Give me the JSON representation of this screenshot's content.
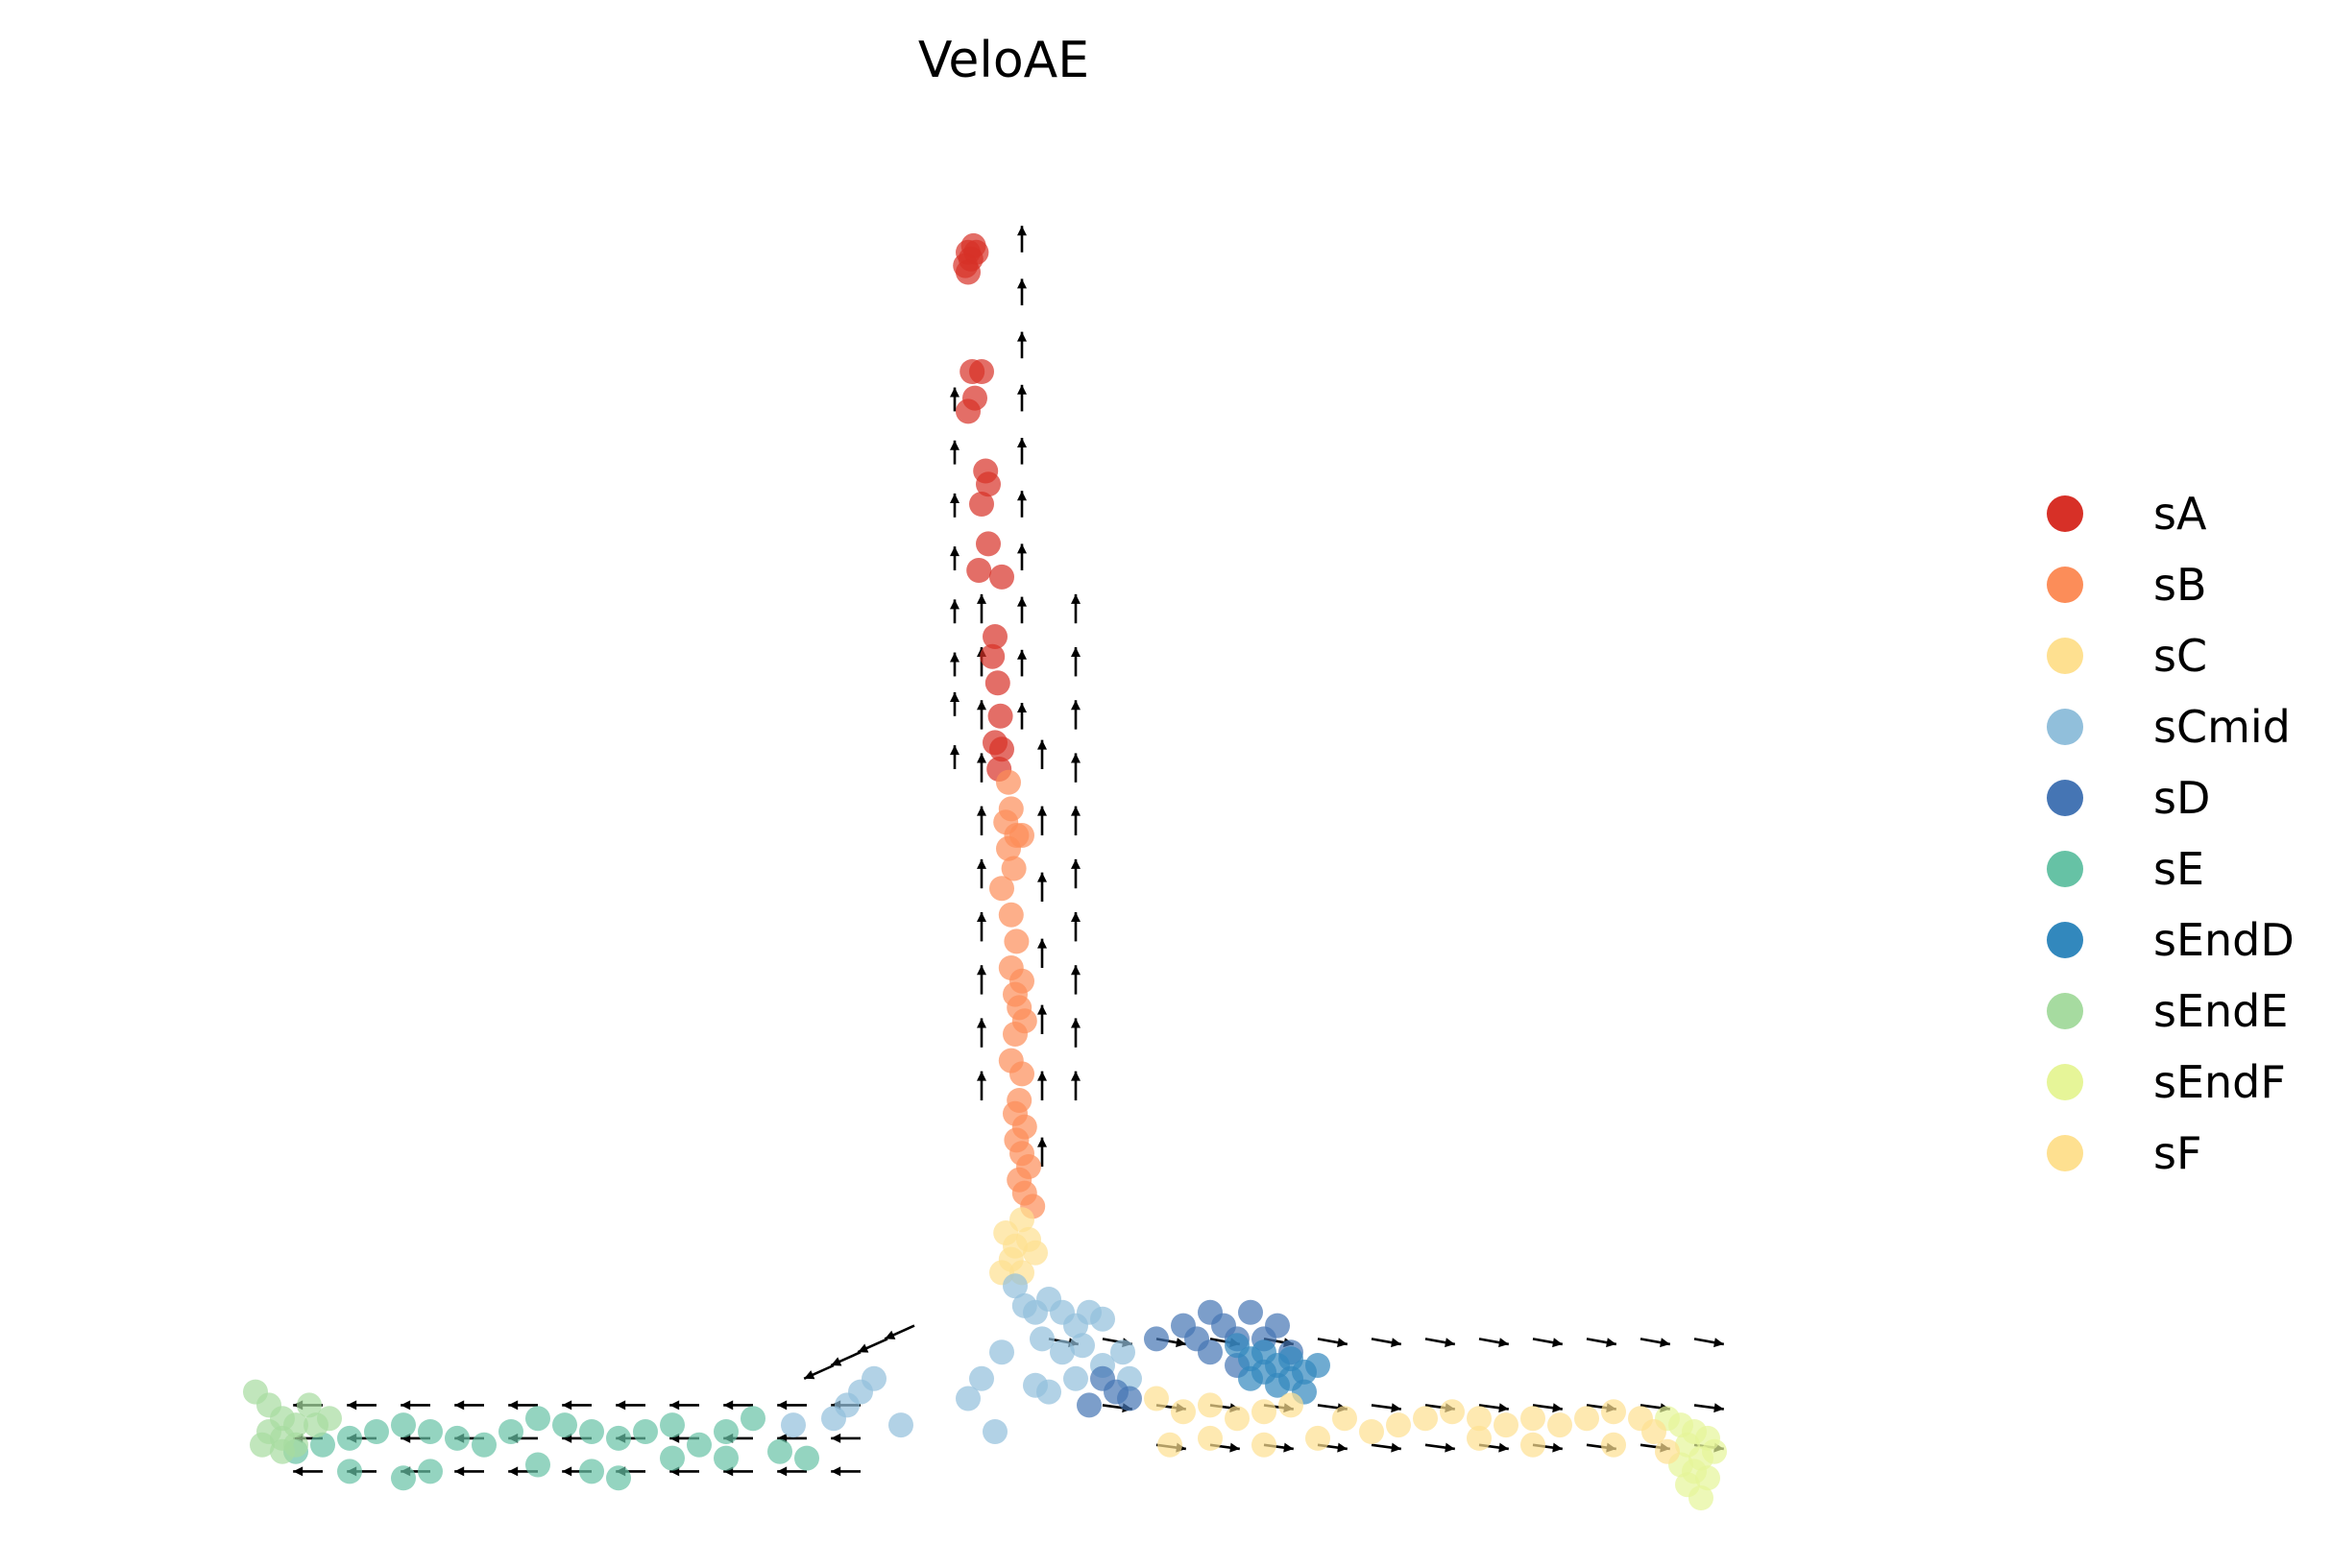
{
  "chart_data": {
    "type": "scatter",
    "title": "VeloAE",
    "xlabel": "",
    "ylabel": "",
    "axes_visible": false,
    "grid": false,
    "legend_position": "right",
    "xlim": [
      -0.1,
      1.2
    ],
    "ylim": [
      0,
      1.0
    ],
    "series": [
      {
        "name": "sA",
        "color": "#d73027",
        "points": [
          [
            0.52,
            0.94
          ],
          [
            0.522,
            0.935
          ],
          [
            0.524,
            0.945
          ],
          [
            0.518,
            0.93
          ],
          [
            0.526,
            0.94
          ],
          [
            0.52,
            0.925
          ],
          [
            0.523,
            0.85
          ],
          [
            0.53,
            0.85
          ],
          [
            0.525,
            0.83
          ],
          [
            0.52,
            0.82
          ],
          [
            0.533,
            0.775
          ],
          [
            0.535,
            0.765
          ],
          [
            0.53,
            0.75
          ],
          [
            0.535,
            0.72
          ],
          [
            0.528,
            0.7
          ],
          [
            0.545,
            0.695
          ],
          [
            0.54,
            0.65
          ],
          [
            0.538,
            0.635
          ],
          [
            0.542,
            0.615
          ],
          [
            0.544,
            0.59
          ],
          [
            0.54,
            0.57
          ],
          [
            0.545,
            0.565
          ],
          [
            0.543,
            0.55
          ]
        ]
      },
      {
        "name": "sB",
        "color": "#fc8d59",
        "points": [
          [
            0.55,
            0.54
          ],
          [
            0.552,
            0.52
          ],
          [
            0.548,
            0.51
          ],
          [
            0.556,
            0.5
          ],
          [
            0.55,
            0.49
          ],
          [
            0.554,
            0.475
          ],
          [
            0.56,
            0.5
          ],
          [
            0.545,
            0.46
          ],
          [
            0.552,
            0.44
          ],
          [
            0.556,
            0.42
          ],
          [
            0.552,
            0.4
          ],
          [
            0.56,
            0.39
          ],
          [
            0.555,
            0.38
          ],
          [
            0.558,
            0.37
          ],
          [
            0.562,
            0.36
          ],
          [
            0.555,
            0.35
          ],
          [
            0.552,
            0.33
          ],
          [
            0.56,
            0.32
          ],
          [
            0.558,
            0.3
          ],
          [
            0.555,
            0.29
          ],
          [
            0.562,
            0.28
          ],
          [
            0.556,
            0.27
          ],
          [
            0.56,
            0.26
          ],
          [
            0.565,
            0.25
          ],
          [
            0.558,
            0.24
          ],
          [
            0.562,
            0.23
          ],
          [
            0.568,
            0.22
          ]
        ]
      },
      {
        "name": "sC",
        "color": "#fee090",
        "points": [
          [
            0.548,
            0.2
          ],
          [
            0.555,
            0.19
          ],
          [
            0.56,
            0.21
          ],
          [
            0.552,
            0.18
          ],
          [
            0.565,
            0.195
          ],
          [
            0.57,
            0.185
          ],
          [
            0.545,
            0.17
          ],
          [
            0.56,
            0.17
          ]
        ]
      },
      {
        "name": "sCmid",
        "color": "#91bfdb",
        "points": [
          [
            0.555,
            0.16
          ],
          [
            0.562,
            0.145
          ],
          [
            0.57,
            0.14
          ],
          [
            0.58,
            0.15
          ],
          [
            0.59,
            0.14
          ],
          [
            0.6,
            0.13
          ],
          [
            0.61,
            0.14
          ],
          [
            0.62,
            0.135
          ],
          [
            0.575,
            0.12
          ],
          [
            0.59,
            0.11
          ],
          [
            0.605,
            0.115
          ],
          [
            0.62,
            0.1
          ],
          [
            0.635,
            0.11
          ],
          [
            0.545,
            0.11
          ],
          [
            0.53,
            0.09
          ],
          [
            0.57,
            0.085
          ],
          [
            0.58,
            0.08
          ],
          [
            0.6,
            0.09
          ],
          [
            0.52,
            0.075
          ],
          [
            0.54,
            0.05
          ],
          [
            0.45,
            0.09
          ],
          [
            0.44,
            0.08
          ],
          [
            0.42,
            0.06
          ],
          [
            0.43,
            0.07
          ],
          [
            0.47,
            0.055
          ],
          [
            0.39,
            0.055
          ],
          [
            0.64,
            0.09
          ]
        ]
      },
      {
        "name": "sD",
        "color": "#4575b4",
        "points": [
          [
            0.62,
            0.09
          ],
          [
            0.63,
            0.08
          ],
          [
            0.64,
            0.075
          ],
          [
            0.61,
            0.07
          ],
          [
            0.66,
            0.12
          ],
          [
            0.68,
            0.13
          ],
          [
            0.69,
            0.12
          ],
          [
            0.7,
            0.14
          ],
          [
            0.71,
            0.13
          ],
          [
            0.72,
            0.12
          ],
          [
            0.73,
            0.14
          ],
          [
            0.7,
            0.11
          ],
          [
            0.72,
            0.1
          ],
          [
            0.74,
            0.12
          ],
          [
            0.75,
            0.13
          ],
          [
            0.76,
            0.11
          ]
        ]
      },
      {
        "name": "sE",
        "color": "#66c2a5",
        "points": [
          [
            0.02,
            0.035
          ],
          [
            0.04,
            0.04
          ],
          [
            0.06,
            0.045
          ],
          [
            0.08,
            0.05
          ],
          [
            0.1,
            0.055
          ],
          [
            0.12,
            0.05
          ],
          [
            0.14,
            0.045
          ],
          [
            0.16,
            0.04
          ],
          [
            0.18,
            0.05
          ],
          [
            0.2,
            0.06
          ],
          [
            0.22,
            0.055
          ],
          [
            0.24,
            0.05
          ],
          [
            0.26,
            0.045
          ],
          [
            0.28,
            0.05
          ],
          [
            0.3,
            0.055
          ],
          [
            0.32,
            0.04
          ],
          [
            0.34,
            0.05
          ],
          [
            0.36,
            0.06
          ],
          [
            0.06,
            0.02
          ],
          [
            0.1,
            0.015
          ],
          [
            0.12,
            0.02
          ],
          [
            0.2,
            0.025
          ],
          [
            0.24,
            0.02
          ],
          [
            0.26,
            0.015
          ],
          [
            0.3,
            0.03
          ],
          [
            0.34,
            0.03
          ],
          [
            0.38,
            0.035
          ],
          [
            0.4,
            0.03
          ]
        ]
      },
      {
        "name": "sEndD",
        "color": "#3288bd",
        "points": [
          [
            0.72,
            0.115
          ],
          [
            0.73,
            0.105
          ],
          [
            0.74,
            0.11
          ],
          [
            0.75,
            0.1
          ],
          [
            0.76,
            0.105
          ],
          [
            0.77,
            0.095
          ],
          [
            0.78,
            0.1
          ],
          [
            0.75,
            0.085
          ],
          [
            0.76,
            0.09
          ],
          [
            0.77,
            0.08
          ],
          [
            0.73,
            0.09
          ],
          [
            0.74,
            0.095
          ]
        ]
      },
      {
        "name": "sEndE",
        "color": "#a6dba0",
        "points": [
          [
            -0.01,
            0.08
          ],
          [
            0.0,
            0.07
          ],
          [
            0.01,
            0.06
          ],
          [
            0.02,
            0.055
          ],
          [
            0.0,
            0.05
          ],
          [
            0.01,
            0.045
          ],
          [
            0.02,
            0.04
          ],
          [
            -0.005,
            0.04
          ],
          [
            0.01,
            0.035
          ],
          [
            0.03,
            0.07
          ],
          [
            0.035,
            0.055
          ],
          [
            0.045,
            0.06
          ]
        ]
      },
      {
        "name": "sEndF",
        "color": "#e6f598",
        "points": [
          [
            1.04,
            0.06
          ],
          [
            1.05,
            0.055
          ],
          [
            1.06,
            0.05
          ],
          [
            1.055,
            0.04
          ],
          [
            1.07,
            0.045
          ],
          [
            1.075,
            0.035
          ],
          [
            1.065,
            0.03
          ],
          [
            1.05,
            0.025
          ],
          [
            1.06,
            0.02
          ],
          [
            1.07,
            0.015
          ],
          [
            1.055,
            0.01
          ],
          [
            1.065,
            0.0
          ]
        ]
      },
      {
        "name": "sF",
        "color": "#fee090",
        "points": [
          [
            0.66,
            0.075
          ],
          [
            0.68,
            0.065
          ],
          [
            0.7,
            0.07
          ],
          [
            0.72,
            0.06
          ],
          [
            0.74,
            0.065
          ],
          [
            0.76,
            0.07
          ],
          [
            0.8,
            0.06
          ],
          [
            0.84,
            0.055
          ],
          [
            0.86,
            0.06
          ],
          [
            0.88,
            0.065
          ],
          [
            0.9,
            0.06
          ],
          [
            0.92,
            0.055
          ],
          [
            0.94,
            0.06
          ],
          [
            0.96,
            0.055
          ],
          [
            0.98,
            0.06
          ],
          [
            1.0,
            0.065
          ],
          [
            1.02,
            0.06
          ],
          [
            0.67,
            0.04
          ],
          [
            0.7,
            0.045
          ],
          [
            0.74,
            0.04
          ],
          [
            0.78,
            0.045
          ],
          [
            0.82,
            0.05
          ],
          [
            0.9,
            0.045
          ],
          [
            0.94,
            0.04
          ],
          [
            1.0,
            0.04
          ],
          [
            1.03,
            0.05
          ],
          [
            1.04,
            0.035
          ]
        ]
      }
    ],
    "velocity_arrows": [
      {
        "region": "stem-left",
        "x": [
          0.51,
          0.51,
          0.51,
          0.51,
          0.51,
          0.51,
          0.51,
          0.51
        ],
        "y": [
          0.55,
          0.59,
          0.62,
          0.66,
          0.7,
          0.74,
          0.78,
          0.82
        ],
        "dx": 0,
        "dy": 0.018
      },
      {
        "region": "stem-right",
        "x": [
          0.56,
          0.56,
          0.56,
          0.56,
          0.56,
          0.56,
          0.56,
          0.56,
          0.56,
          0.56
        ],
        "y": [
          0.58,
          0.62,
          0.66,
          0.7,
          0.74,
          0.78,
          0.82,
          0.86,
          0.9,
          0.94
        ],
        "dx": 0,
        "dy": 0.02
      },
      {
        "region": "stem-lower",
        "x": [
          0.575,
          0.575,
          0.575,
          0.575,
          0.575,
          0.575,
          0.575
        ],
        "y": [
          0.25,
          0.3,
          0.35,
          0.4,
          0.45,
          0.5,
          0.55
        ],
        "dx": 0,
        "dy": 0.022
      },
      {
        "region": "stem-outer",
        "x": [
          0.6,
          0.6,
          0.6,
          0.6,
          0.6,
          0.6,
          0.6,
          0.6,
          0.6,
          0.6
        ],
        "y": [
          0.3,
          0.34,
          0.38,
          0.42,
          0.46,
          0.5,
          0.54,
          0.58,
          0.62,
          0.66
        ],
        "dx": 0,
        "dy": 0.022
      },
      {
        "region": "stem-column",
        "x": [
          0.53,
          0.53,
          0.53,
          0.53,
          0.53,
          0.53,
          0.53,
          0.53,
          0.53,
          0.53
        ],
        "y": [
          0.3,
          0.34,
          0.38,
          0.42,
          0.46,
          0.5,
          0.54,
          0.58,
          0.62,
          0.66
        ],
        "dx": 0,
        "dy": 0.022
      },
      {
        "region": "right-branch",
        "x": [
          0.58,
          0.62,
          0.66,
          0.7,
          0.74,
          0.78,
          0.82,
          0.86,
          0.9,
          0.94,
          0.98,
          1.02,
          1.06
        ],
        "y": [
          0.12,
          0.12,
          0.12,
          0.12,
          0.12,
          0.12,
          0.12,
          0.12,
          0.12,
          0.12,
          0.12,
          0.12,
          0.12
        ],
        "dx": 0.022,
        "dy": -0.004
      },
      {
        "region": "right-branch-2",
        "x": [
          0.62,
          0.66,
          0.7,
          0.74,
          0.78,
          0.82,
          0.86,
          0.9,
          0.94,
          0.98,
          1.02,
          1.06
        ],
        "y": [
          0.07,
          0.07,
          0.07,
          0.07,
          0.07,
          0.07,
          0.07,
          0.07,
          0.07,
          0.07,
          0.07,
          0.07
        ],
        "dx": 0.022,
        "dy": -0.003
      },
      {
        "region": "right-branch-3",
        "x": [
          0.66,
          0.7,
          0.74,
          0.78,
          0.82,
          0.86,
          0.9,
          0.94,
          0.98,
          1.02,
          1.06
        ],
        "y": [
          0.04,
          0.04,
          0.04,
          0.04,
          0.04,
          0.04,
          0.04,
          0.04,
          0.04,
          0.04,
          0.04
        ],
        "dx": 0.022,
        "dy": -0.003
      },
      {
        "region": "left-branch",
        "x": [
          0.04,
          0.08,
          0.12,
          0.16,
          0.2,
          0.24,
          0.28,
          0.32,
          0.36,
          0.4,
          0.44
        ],
        "y": [
          0.07,
          0.07,
          0.07,
          0.07,
          0.07,
          0.07,
          0.07,
          0.07,
          0.07,
          0.07,
          0.07
        ],
        "dx": -0.022,
        "dy": 0.0
      },
      {
        "region": "left-branch-2",
        "x": [
          0.04,
          0.08,
          0.12,
          0.16,
          0.2,
          0.24,
          0.28,
          0.32,
          0.36,
          0.4,
          0.44
        ],
        "y": [
          0.045,
          0.045,
          0.045,
          0.045,
          0.045,
          0.045,
          0.045,
          0.045,
          0.045,
          0.045,
          0.045
        ],
        "dx": -0.022,
        "dy": 0.0
      },
      {
        "region": "left-branch-3",
        "x": [
          0.04,
          0.08,
          0.12,
          0.16,
          0.2,
          0.24,
          0.28,
          0.32,
          0.36,
          0.4,
          0.44
        ],
        "y": [
          0.02,
          0.02,
          0.02,
          0.02,
          0.02,
          0.02,
          0.02,
          0.02,
          0.02,
          0.02,
          0.02
        ],
        "dx": -0.022,
        "dy": 0.0
      },
      {
        "region": "junction-left",
        "x": [
          0.42,
          0.44,
          0.46,
          0.48
        ],
        "y": [
          0.1,
          0.11,
          0.12,
          0.13
        ],
        "dx": -0.022,
        "dy": -0.01
      }
    ]
  }
}
